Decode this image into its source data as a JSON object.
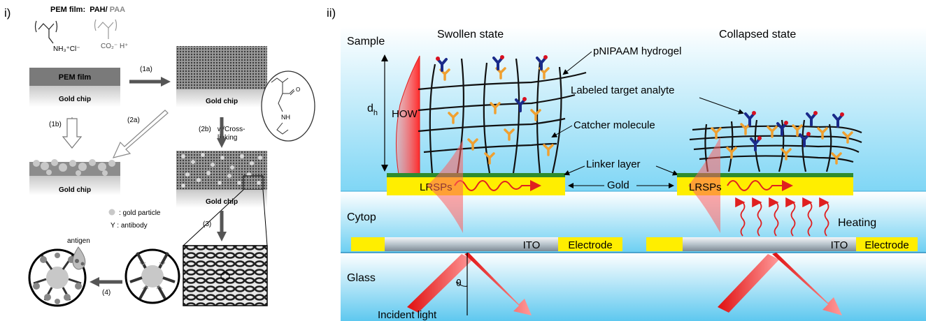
{
  "panel_i": {
    "label": "i)",
    "pem_title": "PEM film:",
    "pem_pah": "PAH/",
    "pem_paa": "PAA",
    "nh3": "NH₃⁺Cl⁻",
    "co2": "CO₂⁻ H⁺",
    "pem_film": "PEM film",
    "gold_chip": "Gold chip",
    "step_1a": "(1a)",
    "step_1b": "(1b)",
    "step_2a": "(2a)",
    "step_2b": "(2b)",
    "crosslink_1": "w/Cross-",
    "crosslink_2": "linking",
    "nh": "NH",
    "step_3": "(3)",
    "step_4": "(4)",
    "legend_gold": ": gold particle",
    "legend_antibody": "Y : antibody",
    "antigen": "antigen"
  },
  "panel_ii": {
    "label": "ii)",
    "sample": "Sample",
    "swollen": "Swollen state",
    "collapsed": "Collapsed state",
    "hydrogel": "pNIPAAM hydrogel",
    "labeled": "Labeled target analyte",
    "catcher": "Catcher molecule",
    "linker": "Linker layer",
    "gold": "Gold",
    "lrsps": "LRSPs",
    "how": "HOW",
    "dh": "d",
    "dh_sub": "h",
    "cytop": "Cytop",
    "heating": "Heating",
    "ito": "ITO",
    "electrode": "Electrode",
    "glass": "Glass",
    "theta": "θ",
    "incident": "Incident light"
  },
  "colors": {
    "gold_yellow": "#ffee00",
    "linker_green": "#2e8b2e",
    "catcher_orange": "#f0a030",
    "analyte_blue": "#1a2a8a",
    "wave_red": "#e02020",
    "sky_blue": "#9ee0f8"
  }
}
